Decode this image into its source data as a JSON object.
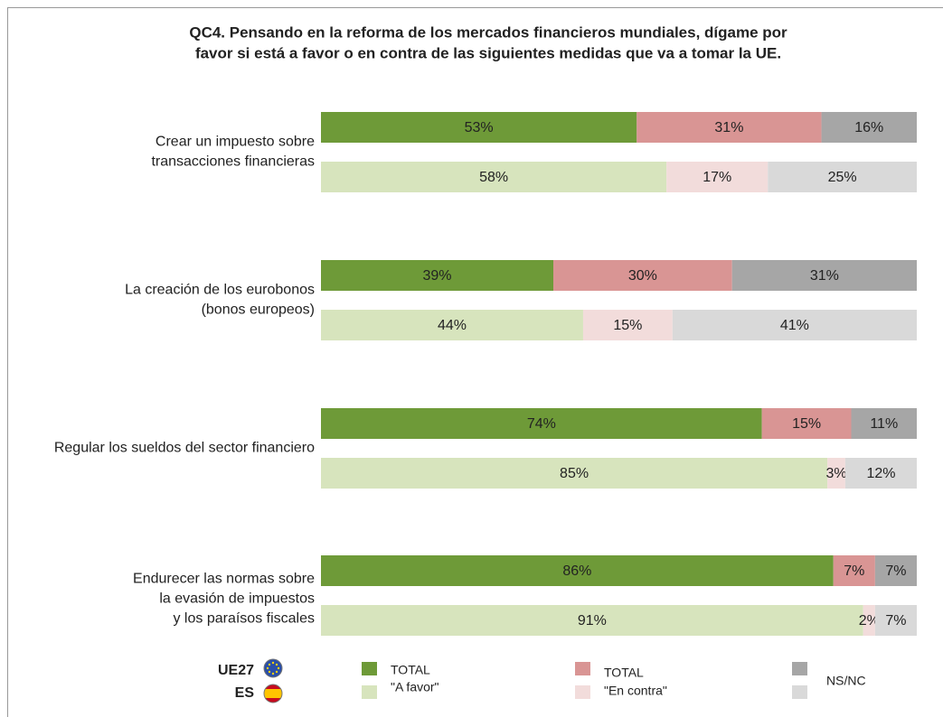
{
  "chart_data": {
    "type": "bar",
    "stacked": true,
    "orientation": "horizontal",
    "title": [
      "QC4. Pensando en la reforma de los mercados financieros mundiales, dígame por",
      "favor si está a favor o en contra de las siguientes medidas que va a tomar la UE."
    ],
    "categories": [
      [
        "Crear un impuesto sobre",
        "transacciones financieras"
      ],
      [
        "La creación de los eurobonos",
        "(bonos europeos)"
      ],
      [
        "Regular los sueldos del sector financiero"
      ],
      [
        "Endurecer las normas sobre",
        "la evasión de impuestos",
        "y los paraísos fiscales"
      ]
    ],
    "rows": [
      "UE27",
      "ES"
    ],
    "xlim": [
      0,
      100
    ],
    "series": [
      {
        "name": "TOTAL",
        "sub": "\"A favor\"",
        "colors": [
          "#6e9a38",
          "#d7e4bd"
        ],
        "values": [
          [
            53,
            58
          ],
          [
            39,
            44
          ],
          [
            74,
            85
          ],
          [
            86,
            91
          ]
        ],
        "value_labels": [
          [
            "53%",
            "58%"
          ],
          [
            "39%",
            "44%"
          ],
          [
            "74%",
            "85%"
          ],
          [
            "86%",
            "91%"
          ]
        ]
      },
      {
        "name": "TOTAL",
        "sub": "\"En contra\"",
        "colors": [
          "#d99594",
          "#f2dcdb"
        ],
        "values": [
          [
            31,
            17
          ],
          [
            30,
            15
          ],
          [
            15,
            3
          ],
          [
            7,
            2
          ]
        ],
        "value_labels": [
          [
            "31%",
            "17%"
          ],
          [
            "30%",
            "15%"
          ],
          [
            "15%",
            "3%"
          ],
          [
            "7%",
            "2%"
          ]
        ]
      },
      {
        "name": "NS/NC",
        "colors": [
          "#a6a6a6",
          "#d9d9d9"
        ],
        "values": [
          [
            16,
            25
          ],
          [
            31,
            41
          ],
          [
            11,
            12
          ],
          [
            7,
            7
          ]
        ],
        "value_labels": [
          [
            "16%",
            "25%"
          ],
          [
            "31%",
            "41%"
          ],
          [
            "11%",
            "12%"
          ],
          [
            "7%",
            "7%"
          ]
        ]
      }
    ]
  }
}
